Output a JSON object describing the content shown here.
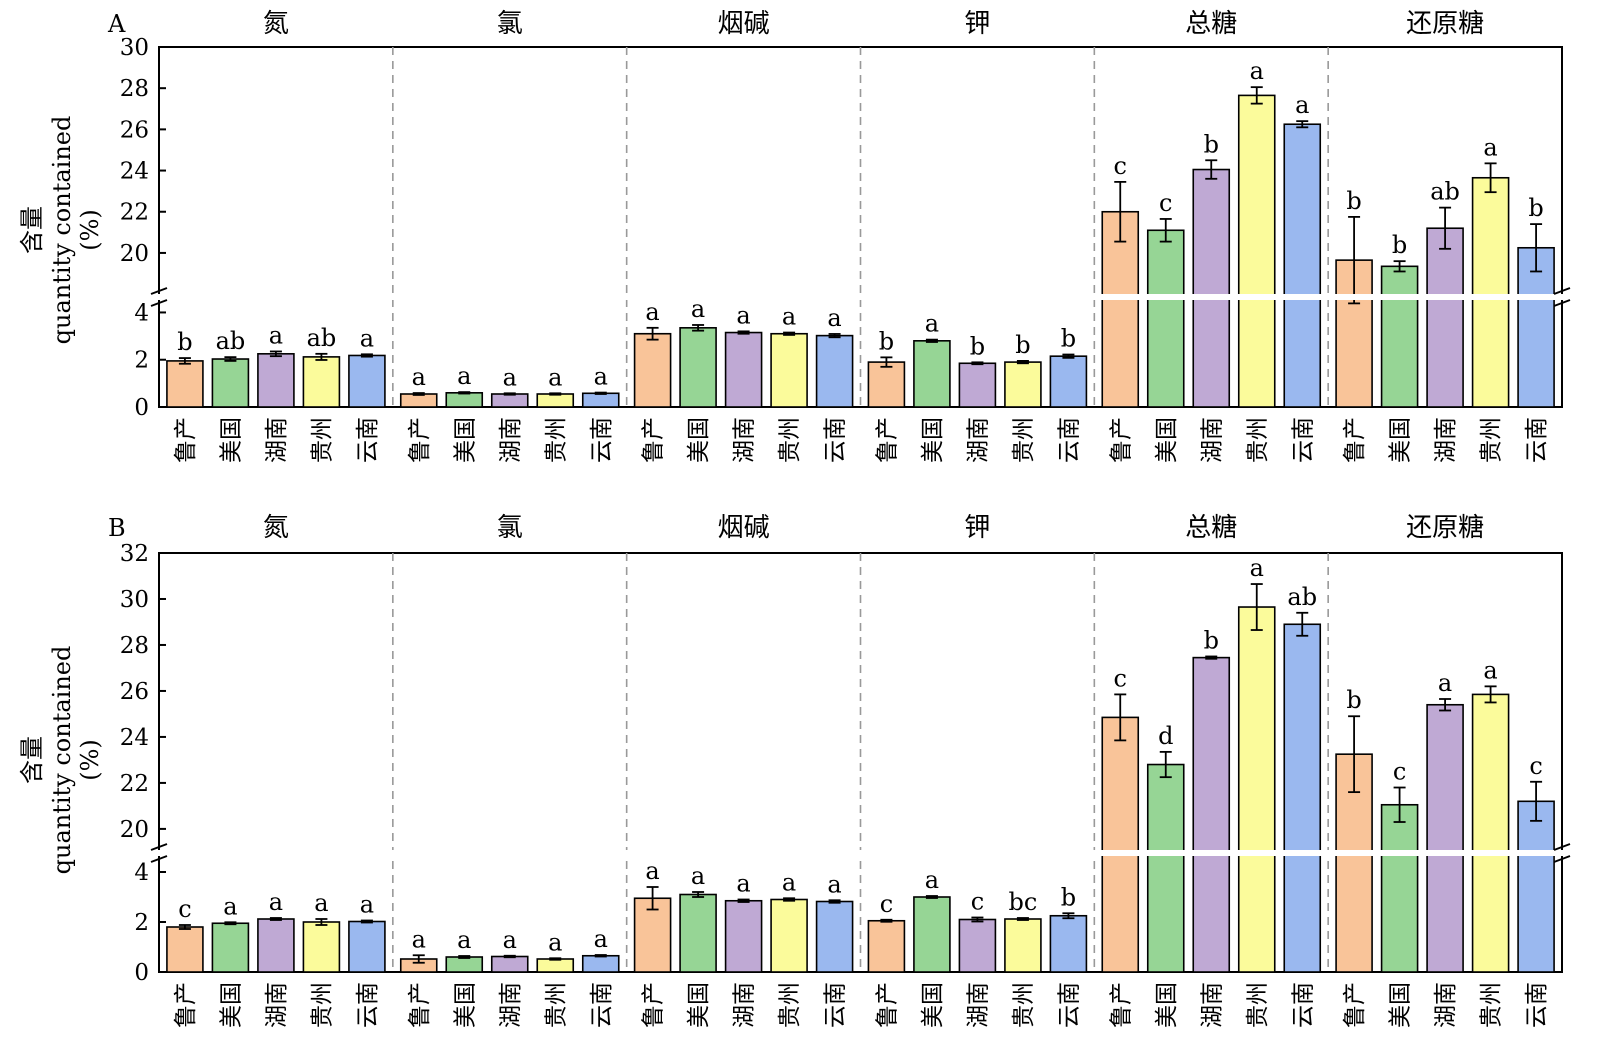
{
  "chart_data": [
    {
      "type": "bar",
      "panel": "A",
      "ylabel": [
        "含量",
        "quantity contained",
        "(%)"
      ],
      "categories": [
        "鲁产",
        "美国",
        "湖南",
        "贵州",
        "云南"
      ],
      "colors": [
        "#f9c499",
        "#96d595",
        "#bfa9d4",
        "#fbfb9b",
        "#9ab8ef"
      ],
      "axis_break": {
        "lower_range": [
          0,
          4.4
        ],
        "upper_range": [
          18.2,
          30
        ]
      },
      "lower_ticks": [
        0,
        2,
        4
      ],
      "upper_ticks": [
        20,
        22,
        24,
        26,
        28,
        30
      ],
      "groups": [
        {
          "name": "氮",
          "values": [
            1.95,
            2.03,
            2.25,
            2.12,
            2.18
          ],
          "errors": [
            0.12,
            0.08,
            0.1,
            0.13,
            0.05
          ],
          "letters": [
            "b",
            "ab",
            "a",
            "ab",
            "a"
          ]
        },
        {
          "name": "氯",
          "values": [
            0.55,
            0.6,
            0.55,
            0.55,
            0.58
          ],
          "errors": [
            0.04,
            0.03,
            0.03,
            0.03,
            0.03
          ],
          "letters": [
            "a",
            "a",
            "a",
            "a",
            "a"
          ]
        },
        {
          "name": "烟碱",
          "values": [
            3.1,
            3.35,
            3.15,
            3.1,
            3.02
          ],
          "errors": [
            0.25,
            0.12,
            0.05,
            0.05,
            0.07
          ],
          "letters": [
            "a",
            "a",
            "a",
            "a",
            "a"
          ]
        },
        {
          "name": "钾",
          "values": [
            1.9,
            2.8,
            1.85,
            1.9,
            2.15
          ],
          "errors": [
            0.2,
            0.05,
            0.04,
            0.05,
            0.07
          ],
          "letters": [
            "b",
            "a",
            "b",
            "b",
            "b"
          ]
        },
        {
          "name": "总糖",
          "values": [
            22.0,
            21.1,
            24.05,
            27.65,
            26.25
          ],
          "errors": [
            1.45,
            0.55,
            0.45,
            0.4,
            0.15
          ],
          "letters": [
            "c",
            "c",
            "b",
            "a",
            "a"
          ]
        },
        {
          "name": "还原糖",
          "values": [
            19.65,
            19.35,
            21.2,
            23.65,
            20.25
          ],
          "errors": [
            2.1,
            0.25,
            1.0,
            0.7,
            1.15
          ],
          "letters": [
            "b",
            "b",
            "ab",
            "a",
            "b"
          ]
        }
      ]
    },
    {
      "type": "bar",
      "panel": "B",
      "ylabel": [
        "含量",
        "quantity contained",
        "(%)"
      ],
      "categories": [
        "鲁产",
        "美国",
        "湖南",
        "贵州",
        "云南"
      ],
      "colors": [
        "#f9c499",
        "#96d595",
        "#bfa9d4",
        "#fbfb9b",
        "#9ab8ef"
      ],
      "axis_break": {
        "lower_range": [
          0,
          4.4
        ],
        "upper_range": [
          19.3,
          32
        ]
      },
      "lower_ticks": [
        0,
        2,
        4
      ],
      "upper_ticks": [
        20,
        22,
        24,
        26,
        28,
        30,
        32
      ],
      "groups": [
        {
          "name": "氮",
          "values": [
            1.8,
            1.95,
            2.12,
            2.0,
            2.02
          ],
          "errors": [
            0.08,
            0.04,
            0.04,
            0.12,
            0.04
          ],
          "letters": [
            "c",
            "a",
            "a",
            "a",
            "a"
          ]
        },
        {
          "name": "氯",
          "values": [
            0.52,
            0.6,
            0.62,
            0.52,
            0.65
          ],
          "errors": [
            0.15,
            0.04,
            0.03,
            0.03,
            0.03
          ],
          "letters": [
            "a",
            "a",
            "a",
            "a",
            "a"
          ]
        },
        {
          "name": "烟碱",
          "values": [
            2.95,
            3.1,
            2.85,
            2.9,
            2.82
          ],
          "errors": [
            0.45,
            0.1,
            0.05,
            0.05,
            0.05
          ],
          "letters": [
            "a",
            "a",
            "a",
            "a",
            "a"
          ]
        },
        {
          "name": "钾",
          "values": [
            2.05,
            3.0,
            2.1,
            2.12,
            2.25
          ],
          "errors": [
            0.04,
            0.04,
            0.08,
            0.04,
            0.1
          ],
          "letters": [
            "c",
            "a",
            "c",
            "bc",
            "b"
          ]
        },
        {
          "name": "总糖",
          "values": [
            24.85,
            22.8,
            27.45,
            29.65,
            28.9
          ],
          "errors": [
            1.0,
            0.55,
            0.05,
            1.0,
            0.5
          ],
          "letters": [
            "c",
            "d",
            "b",
            "a",
            "ab"
          ]
        },
        {
          "name": "还原糖",
          "values": [
            23.25,
            21.05,
            25.4,
            25.85,
            21.2
          ],
          "errors": [
            1.65,
            0.75,
            0.25,
            0.35,
            0.85
          ],
          "letters": [
            "b",
            "c",
            "a",
            "a",
            "c"
          ]
        }
      ]
    }
  ]
}
